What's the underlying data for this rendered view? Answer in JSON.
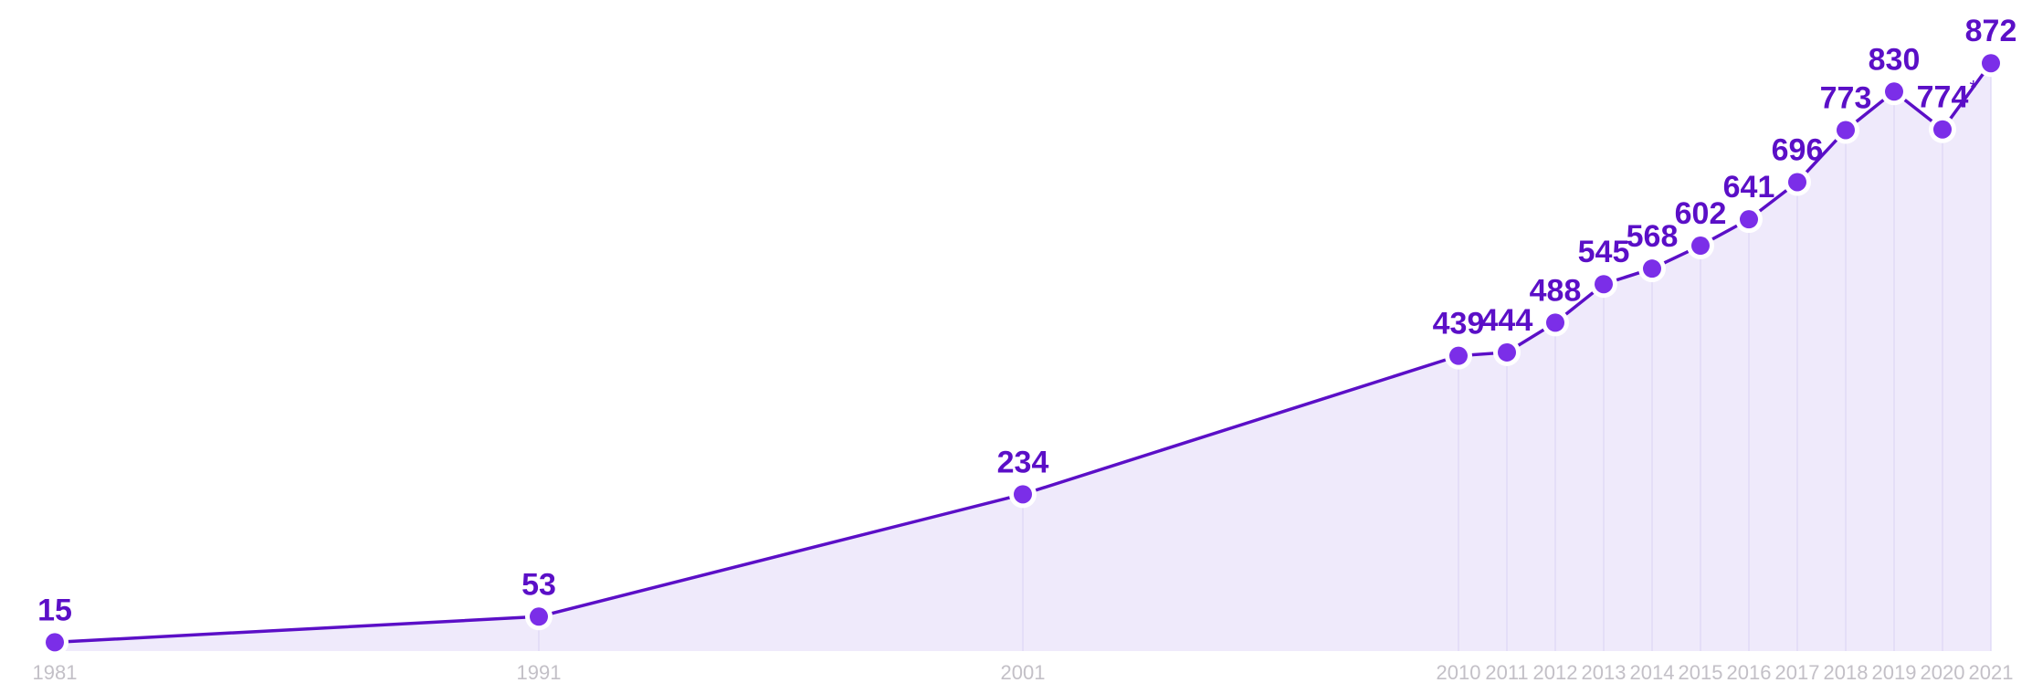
{
  "chart_data": {
    "type": "area",
    "x": [
      "1981",
      "1991",
      "2001",
      "2010",
      "2011",
      "2012",
      "2013",
      "2014",
      "2015",
      "2016",
      "2017",
      "2018",
      "2019",
      "2020",
      "2021"
    ],
    "series": [
      {
        "values": [
          15,
          53,
          234,
          439,
          444,
          488,
          545,
          568,
          602,
          641,
          696,
          773,
          830,
          774,
          872
        ],
        "labels": [
          "15",
          "53",
          "234",
          "439",
          "444",
          "488",
          "545",
          "568",
          "602",
          "641",
          "696",
          "773",
          "830",
          "774",
          "872"
        ],
        "footnote_marks": [
          "",
          "",
          "",
          "",
          "",
          "",
          "",
          "",
          "",
          "",
          "",
          "",
          "",
          "*",
          ""
        ]
      }
    ],
    "title": "",
    "xlabel": "",
    "ylabel": "",
    "ylim": [
      0,
      900
    ],
    "grid": "vertical",
    "legend": "none"
  },
  "colors": {
    "line": "#5b0fc7",
    "marker": "#7b2ee8",
    "area": "#efeafb",
    "grid": "#ddd5f5",
    "label": "#5b0fc7",
    "tick": "#c3c0c7"
  }
}
